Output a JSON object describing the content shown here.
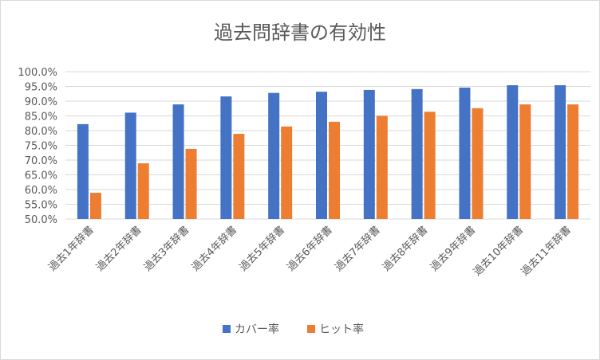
{
  "chart_data": {
    "type": "bar",
    "title": "過去問辞書の有効性",
    "xlabel": "",
    "ylabel": "",
    "ylim": [
      50.0,
      100.0
    ],
    "ytick_step": 5,
    "yticks": [
      "50.0%",
      "55.0%",
      "60.0%",
      "65.0%",
      "70.0%",
      "75.0%",
      "80.0%",
      "85.0%",
      "90.0%",
      "95.0%",
      "100.0%"
    ],
    "categories": [
      "過去1年辞書",
      "過去2年辞書",
      "過去3年辞書",
      "過去4年辞書",
      "過去5年辞書",
      "過去6年辞書",
      "過去7年辞書",
      "過去8年辞書",
      "過去9年辞書",
      "過去10年辞書",
      "過去11年辞書"
    ],
    "series": [
      {
        "name": "カバー率",
        "color": "#4472c4",
        "values": [
          82.2,
          86.1,
          88.9,
          91.6,
          92.8,
          93.2,
          93.8,
          94.1,
          94.6,
          95.4,
          95.4
        ]
      },
      {
        "name": "ヒット率",
        "color": "#ed7d31",
        "values": [
          58.9,
          68.9,
          73.8,
          78.9,
          81.4,
          83.0,
          85.0,
          86.4,
          87.6,
          88.9,
          88.9
        ]
      }
    ],
    "grid": true,
    "legend_position": "bottom"
  }
}
